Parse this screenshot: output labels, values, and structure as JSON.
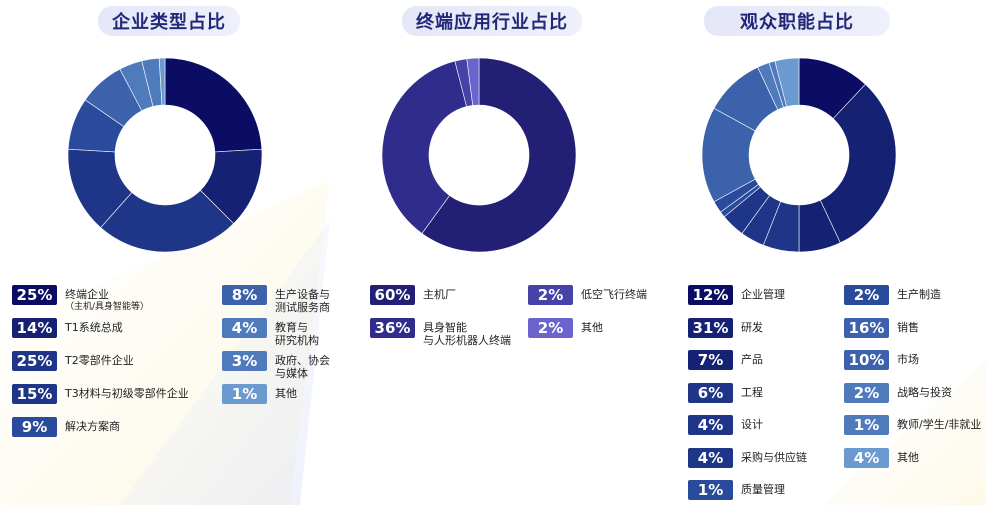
{
  "colors": {
    "c1": "#0a0d63",
    "c2": "#152173",
    "c3": "#1f3588",
    "c4": "#2a4a9c",
    "c5": "#3b62ab",
    "c6": "#4f7bbd",
    "c7": "#6b9ad0",
    "p1": "#231f74",
    "p2": "#2f2c8c",
    "p3": "#4742a8",
    "p4": "#6a64cc"
  },
  "chart_data": [
    {
      "type": "pie",
      "title": "企业类型占比",
      "slices": [
        {
          "label": "终端企业",
          "sublabel": "（主机/具身智能等）",
          "value": 25,
          "display": "25%",
          "color_key": "c1"
        },
        {
          "label": "T1系统总成",
          "value": 14,
          "display": "14%",
          "color_key": "c2"
        },
        {
          "label": "T2零部件企业",
          "value": 25,
          "display": "25%",
          "color_key": "c3"
        },
        {
          "label": "T3材料与初级零部件企业",
          "value": 15,
          "display": "15%",
          "color_key": "c3"
        },
        {
          "label": "解决方案商",
          "value": 9,
          "display": "9%",
          "color_key": "c4"
        },
        {
          "label": "生产设备与",
          "label2": "测试服务商",
          "value": 8,
          "display": "8%",
          "color_key": "c5"
        },
        {
          "label": "教育与",
          "label2": "研究机构",
          "value": 4,
          "display": "4%",
          "color_key": "c6"
        },
        {
          "label": "政府、协会",
          "label2": "与媒体",
          "value": 3,
          "display": "3%",
          "color_key": "c6"
        },
        {
          "label": "其他",
          "value": 1,
          "display": "1%",
          "color_key": "c7"
        }
      ]
    },
    {
      "type": "pie",
      "title": "终端应用行业占比",
      "slices": [
        {
          "label": "主机厂",
          "value": 60,
          "display": "60%",
          "color_key": "p1"
        },
        {
          "label": "具身智能",
          "label2": "与人形机器人终端",
          "value": 36,
          "display": "36%",
          "color_key": "p2"
        },
        {
          "label": "低空飞行终端",
          "value": 2,
          "display": "2%",
          "color_key": "p3"
        },
        {
          "label": "其他",
          "value": 2,
          "display": "2%",
          "color_key": "p4"
        }
      ]
    },
    {
      "type": "pie",
      "title": "观众职能占比",
      "slices": [
        {
          "label": "企业管理",
          "value": 12,
          "display": "12%",
          "color_key": "c1"
        },
        {
          "label": "研发",
          "value": 31,
          "display": "31%",
          "color_key": "c2"
        },
        {
          "label": "产品",
          "value": 7,
          "display": "7%",
          "color_key": "c2"
        },
        {
          "label": "工程",
          "value": 6,
          "display": "6%",
          "color_key": "c3"
        },
        {
          "label": "设计",
          "value": 4,
          "display": "4%",
          "color_key": "c3"
        },
        {
          "label": "采购与供应链",
          "value": 4,
          "display": "4%",
          "color_key": "c3"
        },
        {
          "label": "质量管理",
          "value": 1,
          "display": "1%",
          "color_key": "c4"
        },
        {
          "label": "生产制造",
          "value": 2,
          "display": "2%",
          "color_key": "c4"
        },
        {
          "label": "销售",
          "value": 16,
          "display": "16%",
          "color_key": "c5"
        },
        {
          "label": "市场",
          "value": 10,
          "display": "10%",
          "color_key": "c5"
        },
        {
          "label": "战略与投资",
          "value": 2,
          "display": "2%",
          "color_key": "c6"
        },
        {
          "label": "教师/学生/非就业",
          "value": 1,
          "display": "1%",
          "color_key": "c6"
        },
        {
          "label": "其他",
          "value": 4,
          "display": "4%",
          "color_key": "c7"
        }
      ]
    }
  ]
}
